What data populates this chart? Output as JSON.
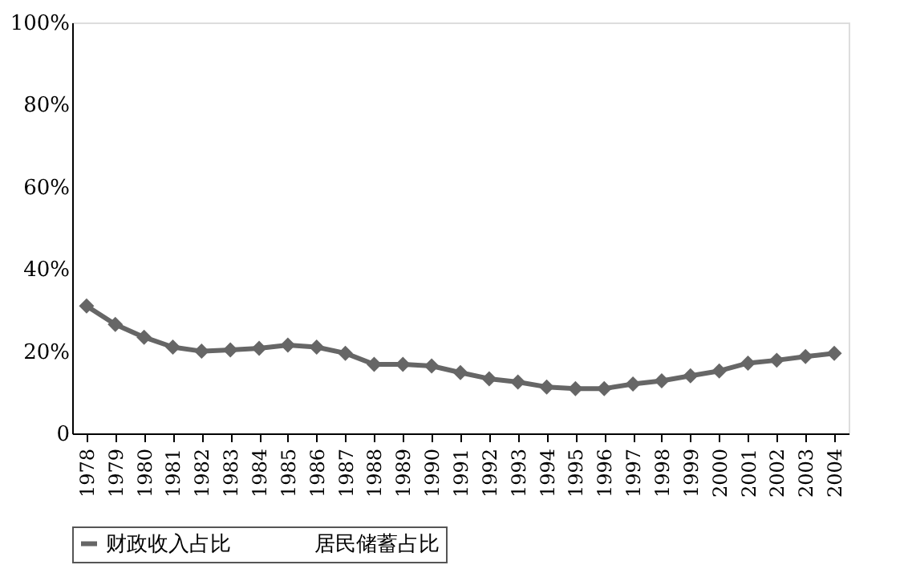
{
  "chart_data": {
    "type": "line",
    "categories": [
      "1978",
      "1979",
      "1980",
      "1981",
      "1982",
      "1983",
      "1984",
      "1985",
      "1986",
      "1987",
      "1988",
      "1989",
      "1990",
      "1991",
      "1992",
      "1993",
      "1994",
      "1995",
      "1996",
      "1997",
      "1998",
      "1999",
      "2000",
      "2001",
      "2002",
      "2003",
      "2004"
    ],
    "series": [
      {
        "name": "财政收入占比",
        "color": "#666666",
        "marker": "diamond",
        "line_style": "solid",
        "values": [
          31,
          26.5,
          23.4,
          21,
          20,
          20.3,
          20.7,
          21.5,
          21,
          19.5,
          16.8,
          16.8,
          16.4,
          14.8,
          13.3,
          12.5,
          11.3,
          10.9,
          10.9,
          12,
          12.8,
          14,
          15.2,
          17.1,
          17.8,
          18.7,
          19.5
        ]
      },
      {
        "name": "居民储蓄占比",
        "marker": "none",
        "values": [
          null,
          null,
          null,
          null,
          null,
          null,
          null,
          null,
          null,
          null,
          null,
          null,
          null,
          null,
          null,
          null,
          null,
          null,
          null,
          null,
          null,
          null,
          null,
          null,
          null,
          null,
          null
        ]
      }
    ],
    "ylim": [
      0,
      100
    ],
    "yticks": [
      {
        "value": 0,
        "label": "0"
      },
      {
        "value": 20,
        "label": "20%"
      },
      {
        "value": 40,
        "label": "40%"
      },
      {
        "value": 60,
        "label": "60%"
      },
      {
        "value": 80,
        "label": "80%"
      },
      {
        "value": 100,
        "label": "100%"
      }
    ],
    "grid": false,
    "legend": "bottom"
  }
}
